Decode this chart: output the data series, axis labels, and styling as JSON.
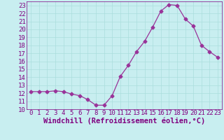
{
  "x": [
    0,
    1,
    2,
    3,
    4,
    5,
    6,
    7,
    8,
    9,
    10,
    11,
    12,
    13,
    14,
    15,
    16,
    17,
    18,
    19,
    20,
    21,
    22,
    23
  ],
  "y": [
    12.2,
    12.2,
    12.2,
    12.3,
    12.2,
    11.9,
    11.7,
    11.2,
    10.5,
    10.5,
    11.7,
    14.1,
    15.5,
    17.2,
    18.5,
    20.3,
    22.3,
    23.1,
    23.0,
    21.3,
    20.4,
    18.0,
    17.2,
    16.5
  ],
  "line_color": "#993399",
  "marker": "D",
  "marker_size": 2.5,
  "bg_color": "#c8eef0",
  "grid_color": "#aadddd",
  "xlabel": "Windchill (Refroidissement éolien,°C)",
  "xlabel_color": "#800080",
  "tick_color": "#800080",
  "xlim": [
    -0.5,
    23.5
  ],
  "ylim": [
    10,
    23.5
  ],
  "yticks": [
    10,
    11,
    12,
    13,
    14,
    15,
    16,
    17,
    18,
    19,
    20,
    21,
    22,
    23
  ],
  "xticks": [
    0,
    1,
    2,
    3,
    4,
    5,
    6,
    7,
    8,
    9,
    10,
    11,
    12,
    13,
    14,
    15,
    16,
    17,
    18,
    19,
    20,
    21,
    22,
    23
  ],
  "tick_fontsize": 6.5,
  "xlabel_fontsize": 7.5
}
